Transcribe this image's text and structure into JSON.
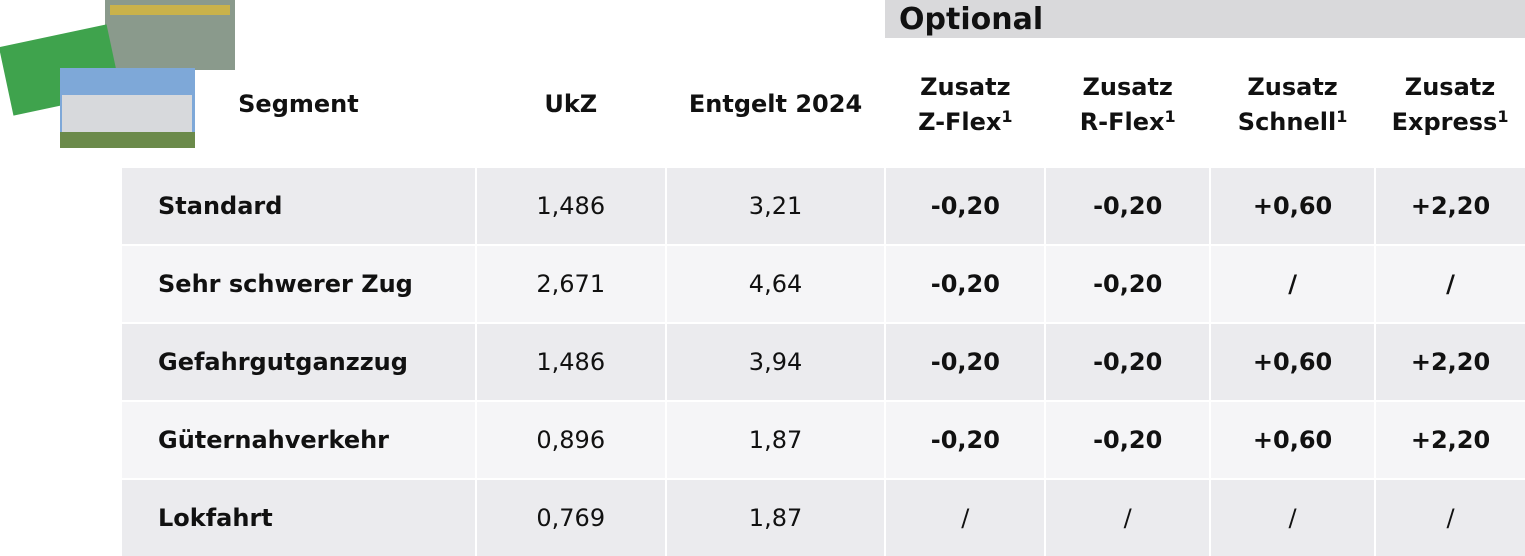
{
  "optional_label": "Optional",
  "columns": [
    {
      "lines": [
        "Segment"
      ]
    },
    {
      "lines": [
        "UkZ"
      ]
    },
    {
      "lines": [
        "Entgelt 2024"
      ]
    },
    {
      "lines": [
        "Zusatz",
        "Z-Flex"
      ],
      "footnote": "1"
    },
    {
      "lines": [
        "Zusatz",
        "R-Flex"
      ],
      "footnote": "1"
    },
    {
      "lines": [
        "Zusatz",
        "Schnell"
      ],
      "footnote": "1"
    },
    {
      "lines": [
        "Zusatz",
        "Express"
      ],
      "footnote": "1"
    }
  ],
  "rows": [
    [
      "Standard",
      "1,486",
      "3,21",
      "-0,20",
      "-0,20",
      "+0,60",
      "+2,20"
    ],
    [
      "Sehr schwerer Zug",
      "2,671",
      "4,64",
      "-0,20",
      "-0,20",
      "/",
      "/"
    ],
    [
      "Gefahrgutganzzug",
      "1,486",
      "3,94",
      "-0,20",
      "-0,20",
      "+0,60",
      "+2,20"
    ],
    [
      "Güternahverkehr",
      "0,896",
      "1,87",
      "-0,20",
      "-0,20",
      "+0,60",
      "+2,20"
    ],
    [
      "Lokfahrt",
      "0,769",
      "1,87",
      "/",
      "/",
      "/",
      "/"
    ]
  ]
}
